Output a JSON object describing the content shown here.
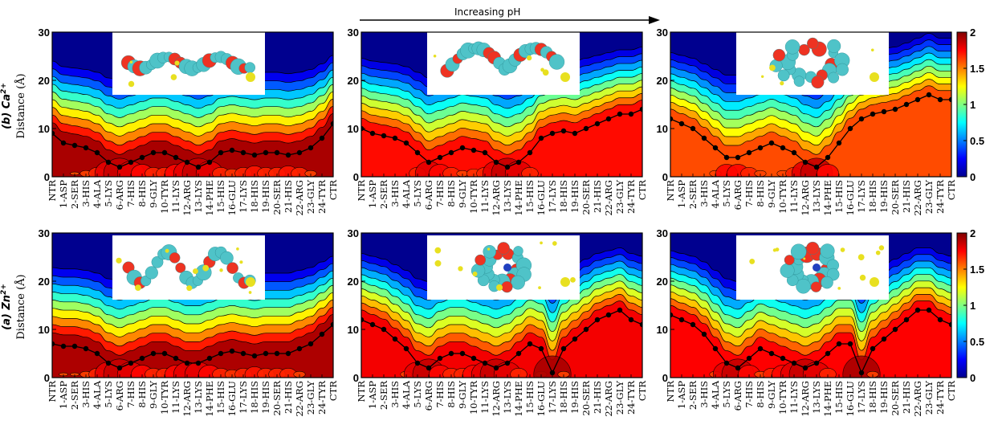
{
  "header": {
    "ph_label": "Increasing pH"
  },
  "rows": [
    {
      "label_ion": "(b) Ca",
      "label_sup": "2+",
      "ylabel": "Distance (Å)"
    },
    {
      "label_ion": "(a) Zn",
      "label_sup": "2+",
      "ylabel": "Distance (Å)"
    }
  ],
  "colorbar": {
    "ticks": [
      "2",
      "1.5",
      "1",
      "0.5",
      "0"
    ],
    "range": [
      0,
      2
    ]
  },
  "colors": {
    "scale": [
      "#00008f",
      "#0000ff",
      "#0080ff",
      "#00ffff",
      "#80ff80",
      "#ffff00",
      "#ff8000",
      "#ff0000",
      "#800000"
    ],
    "ion_sphere": "#e8e020",
    "bead_cyan": "#4fc3c8",
    "bead_red": "#ee3322",
    "bead_blue": "#2040c0"
  },
  "chart_data": [
    {
      "type": "heatmap",
      "panel": "Ca2+ low pH",
      "ylim": [
        0,
        30
      ],
      "yticks": [
        "0",
        "10",
        "20",
        "30"
      ],
      "categories": [
        "NTR",
        "1-ASP",
        "2-SER",
        "3-HIS",
        "4-ALA",
        "5-LYS",
        "6-ARG",
        "7-HIS",
        "8-HIS",
        "9-GLY",
        "10-TYR",
        "11-LYS",
        "12-ARG",
        "13-LYS",
        "14-PHE",
        "15-HIS",
        "16-GLU",
        "17-LYS",
        "18-HIS",
        "19-HIS",
        "20-SER",
        "21-HIS",
        "22-ARG",
        "23-GLY",
        "24-TYR",
        "CTR"
      ],
      "mean_distance": [
        9,
        7,
        6.5,
        6,
        5,
        3,
        2,
        3,
        4,
        5,
        5,
        4,
        3,
        2,
        3,
        5,
        5.5,
        5,
        4.5,
        5,
        5,
        4.5,
        5,
        6,
        8,
        11
      ]
    },
    {
      "type": "heatmap",
      "panel": "Ca2+ mid pH",
      "ylim": [
        0,
        30
      ],
      "yticks": [
        "0",
        "10",
        "20",
        "30"
      ],
      "categories": [
        "NTR",
        "1-ASP",
        "2-SER",
        "3-HIS",
        "4-ALA",
        "5-LYS",
        "6-ARG",
        "7-HIS",
        "8-HIS",
        "9-GLY",
        "10-TYR",
        "11-LYS",
        "12-ARG",
        "13-LYS",
        "14-PHE",
        "15-HIS",
        "16-GLU",
        "17-LYS",
        "18-HIS",
        "19-HIS",
        "20-SER",
        "21-HIS",
        "22-ARG",
        "23-GLY",
        "24-TYR",
        "CTR"
      ],
      "mean_distance": [
        10,
        9,
        8.5,
        8,
        7,
        5,
        3,
        4,
        5,
        6,
        5.5,
        5,
        3,
        2,
        3,
        5,
        8,
        9,
        9.5,
        9,
        10,
        11,
        12,
        13,
        13,
        14
      ]
    },
    {
      "type": "heatmap",
      "panel": "Ca2+ high pH",
      "ylim": [
        0,
        30
      ],
      "yticks": [
        "0",
        "10",
        "20",
        "30"
      ],
      "categories": [
        "NTR",
        "1-ASP",
        "2-SER",
        "3-HIS",
        "4-ALA",
        "5-LYS",
        "6-ARG",
        "7-HIS",
        "8-HIS",
        "9-GLY",
        "10-TYR",
        "11-LYS",
        "12-ARG",
        "13-LYS",
        "14-PHE",
        "15-HIS",
        "16-GLU",
        "17-LYS",
        "18-HIS",
        "19-HIS",
        "20-SER",
        "21-HIS",
        "22-ARG",
        "23-GLY",
        "24-TYR",
        "CTR"
      ],
      "mean_distance": [
        12,
        11,
        10,
        8,
        6,
        4,
        4,
        5,
        6,
        7,
        6,
        5,
        3,
        2,
        4,
        7,
        10,
        12,
        13,
        13.5,
        14,
        15,
        16,
        17,
        16,
        16
      ]
    },
    {
      "type": "heatmap",
      "panel": "Zn2+ low pH",
      "ylim": [
        0,
        30
      ],
      "yticks": [
        "0",
        "10",
        "20",
        "30"
      ],
      "categories": [
        "NTR",
        "1-ASP",
        "2-SER",
        "3-HIS",
        "4-ALA",
        "5-LYS",
        "6-ARG",
        "7-HIS",
        "8-HIS",
        "9-GLY",
        "10-TYR",
        "11-LYS",
        "12-ARG",
        "13-LYS",
        "14-PHE",
        "15-HIS",
        "16-GLU",
        "17-LYS",
        "18-HIS",
        "19-HIS",
        "20-SER",
        "21-HIS",
        "22-ARG",
        "23-GLY",
        "24-TYR",
        "CTR"
      ],
      "mean_distance": [
        7,
        6.5,
        6.5,
        6,
        5,
        3,
        2,
        3,
        4,
        5,
        5,
        4,
        3,
        3,
        4,
        5,
        5.5,
        5,
        4.5,
        5,
        5,
        5,
        6,
        7,
        9,
        11
      ]
    },
    {
      "type": "heatmap",
      "panel": "Zn2+ mid pH",
      "ylim": [
        0,
        30
      ],
      "yticks": [
        "0",
        "10",
        "20",
        "30"
      ],
      "categories": [
        "NTR",
        "1-ASP",
        "2-SER",
        "3-HIS",
        "4-ALA",
        "5-LYS",
        "6-ARG",
        "7-HIS",
        "8-HIS",
        "9-GLY",
        "10-TYR",
        "11-LYS",
        "12-ARG",
        "13-LYS",
        "14-PHE",
        "15-HIS",
        "16-GLU",
        "17-LYS",
        "18-HIS",
        "19-HIS",
        "20-SER",
        "21-HIS",
        "22-ARG",
        "23-GLY",
        "24-TYR",
        "CTR"
      ],
      "mean_distance": [
        12,
        11,
        10,
        8,
        6,
        3,
        2,
        4,
        5,
        5,
        4,
        3,
        2,
        3,
        5,
        7,
        6,
        1,
        6,
        8,
        10,
        12,
        13,
        14,
        12,
        11
      ]
    },
    {
      "type": "heatmap",
      "panel": "Zn2+ high pH",
      "ylim": [
        0,
        30
      ],
      "yticks": [
        "0",
        "10",
        "20",
        "30"
      ],
      "categories": [
        "NTR",
        "1-ASP",
        "2-SER",
        "3-HIS",
        "4-ALA",
        "5-LYS",
        "6-ARG",
        "7-HIS",
        "8-HIS",
        "9-GLY",
        "10-TYR",
        "11-LYS",
        "12-ARG",
        "13-LYS",
        "14-PHE",
        "15-HIS",
        "16-GLU",
        "17-LYS",
        "18-HIS",
        "19-HIS",
        "20-SER",
        "21-HIS",
        "22-ARG",
        "23-GLY",
        "24-TYR",
        "CTR"
      ],
      "mean_distance": [
        13,
        12,
        11,
        9,
        6,
        3,
        2,
        4,
        6,
        5,
        4,
        3,
        2,
        3,
        5,
        7,
        7,
        1,
        6,
        8,
        10,
        12,
        14,
        14,
        12,
        11
      ]
    }
  ]
}
